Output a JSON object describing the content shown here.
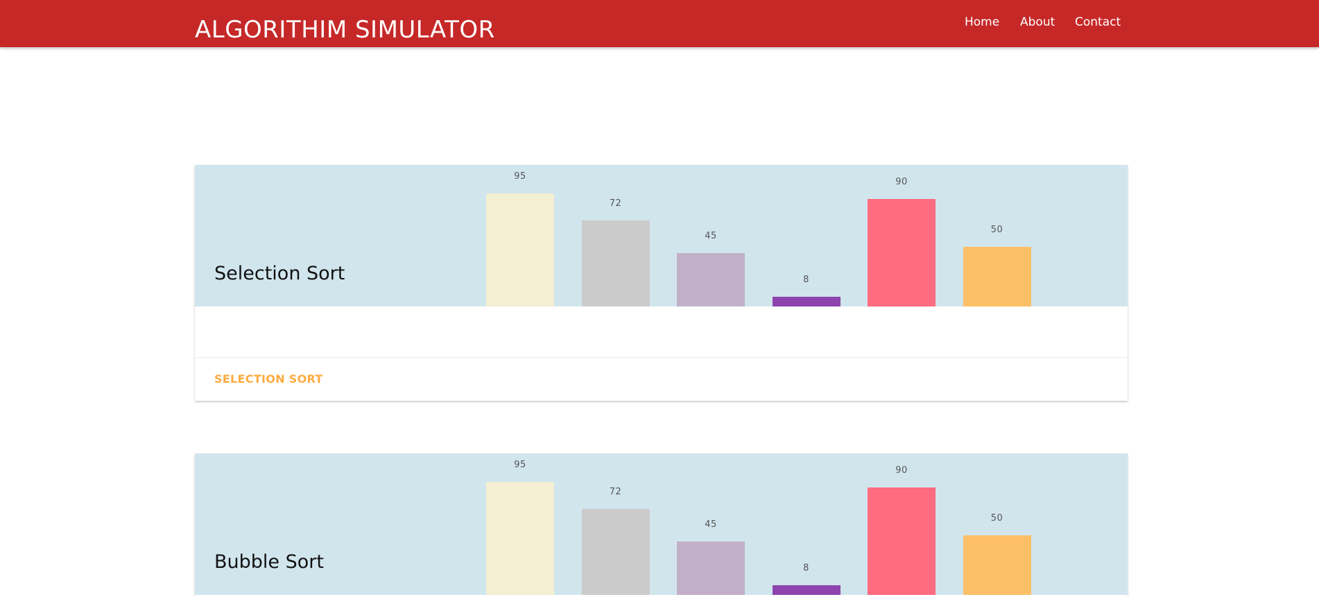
{
  "navbar": {
    "brand": "ALGORITHIM SIMULATOR",
    "links": [
      "Home",
      "About",
      "Contact"
    ],
    "color": "#c62828"
  },
  "cards": [
    {
      "title": "Selection Sort",
      "action": "SELECTION SORT",
      "values": [
        95,
        72,
        45,
        8,
        90,
        50
      ]
    },
    {
      "title": "Bubble Sort",
      "values": [
        95,
        72,
        45,
        8,
        90,
        50
      ]
    }
  ],
  "chart_data": [
    {
      "type": "bar",
      "categories": [
        "",
        "",
        "",
        "",
        "",
        ""
      ],
      "values": [
        95,
        72,
        45,
        8,
        90,
        50
      ],
      "colors": [
        "#f4efd3",
        "#cbcbcb",
        "#c2b0c8",
        "#8e44ad",
        "#ff6b7f",
        "#fdbf68"
      ],
      "ylim": [
        0,
        100
      ]
    },
    {
      "type": "bar",
      "categories": [
        "",
        "",
        "",
        "",
        "",
        ""
      ],
      "values": [
        95,
        72,
        45,
        8,
        90,
        50
      ],
      "colors": [
        "#f4efd3",
        "#cbcbcb",
        "#c2b0c8",
        "#8e44ad",
        "#ff6b7f",
        "#fdbf68"
      ],
      "ylim": [
        0,
        100
      ]
    }
  ]
}
